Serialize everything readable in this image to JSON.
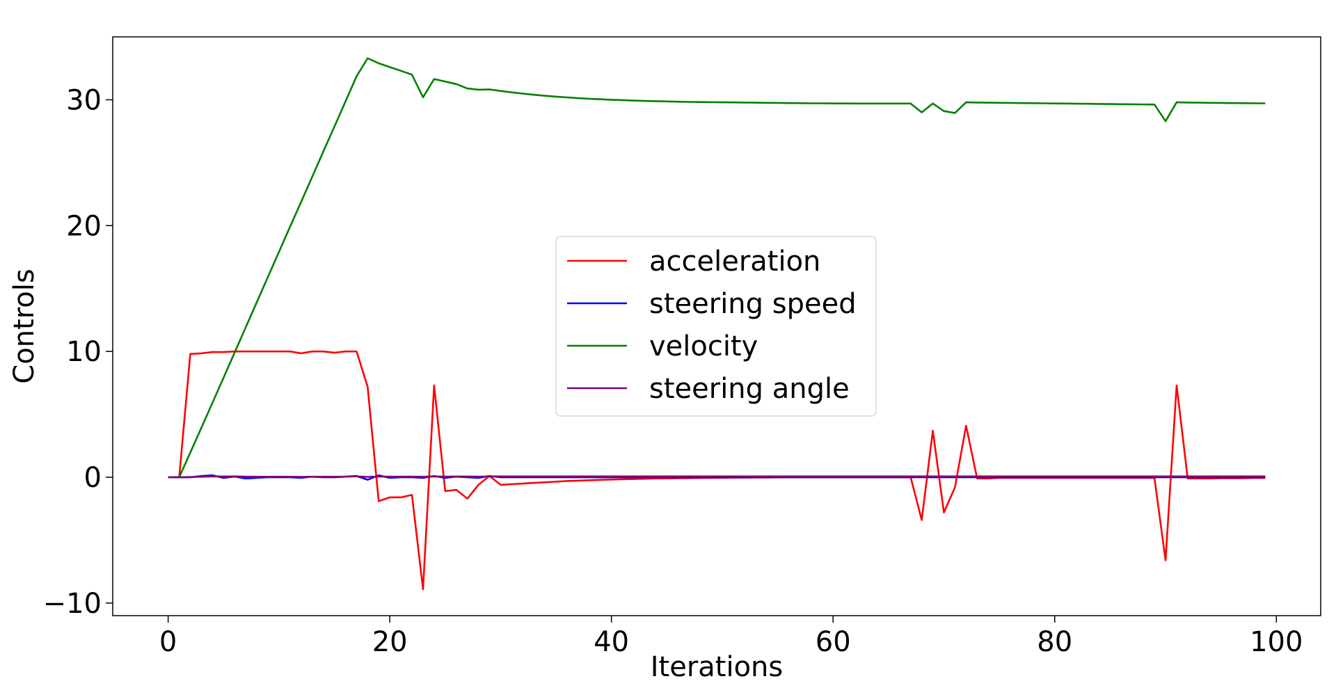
{
  "chart_data": {
    "type": "line",
    "xlabel": "Iterations",
    "ylabel": "Controls",
    "xlim": [
      -5,
      104
    ],
    "ylim": [
      -11,
      35
    ],
    "xticks": [
      0,
      20,
      40,
      60,
      80,
      100
    ],
    "yticks": [
      -10,
      0,
      10,
      20,
      30
    ],
    "xtick_labels": [
      "0",
      "20",
      "40",
      "60",
      "80",
      "100"
    ],
    "ytick_labels": [
      "−10",
      "0",
      "10",
      "20",
      "30"
    ],
    "grid": false,
    "legend_position": "center",
    "x": [
      0,
      1,
      2,
      3,
      4,
      5,
      6,
      7,
      8,
      9,
      10,
      11,
      12,
      13,
      14,
      15,
      16,
      17,
      18,
      19,
      20,
      21,
      22,
      23,
      24,
      25,
      26,
      27,
      28,
      29,
      30,
      31,
      32,
      33,
      34,
      35,
      36,
      37,
      38,
      39,
      40,
      41,
      42,
      43,
      44,
      45,
      46,
      47,
      48,
      49,
      50,
      51,
      52,
      53,
      54,
      55,
      56,
      57,
      58,
      59,
      60,
      61,
      62,
      63,
      64,
      65,
      66,
      67,
      68,
      69,
      70,
      71,
      72,
      73,
      74,
      75,
      76,
      77,
      78,
      79,
      80,
      81,
      82,
      83,
      84,
      85,
      86,
      87,
      88,
      89,
      90,
      91,
      92,
      93,
      94,
      95,
      96,
      97,
      98,
      99
    ],
    "series": [
      {
        "name": "acceleration",
        "color": "#ff0000",
        "values": [
          0,
          0,
          9.8,
          9.85,
          9.95,
          9.95,
          10,
          10,
          10,
          10,
          10,
          10,
          9.85,
          10,
          10,
          9.9,
          10,
          10,
          7.2,
          -1.9,
          -1.6,
          -1.6,
          -1.4,
          -8.9,
          7.3,
          -1.1,
          -1.0,
          -1.7,
          -0.6,
          0.1,
          -0.6,
          -0.55,
          -0.5,
          -0.45,
          -0.4,
          -0.35,
          -0.3,
          -0.27,
          -0.24,
          -0.21,
          -0.18,
          -0.16,
          -0.14,
          -0.12,
          -0.1,
          -0.09,
          -0.08,
          -0.07,
          -0.06,
          -0.05,
          -0.04,
          -0.03,
          -0.03,
          -0.02,
          -0.02,
          -0.01,
          -0.01,
          -0.01,
          0,
          0,
          0,
          0,
          0,
          0,
          0,
          0,
          0,
          0,
          -3.4,
          3.7,
          -2.8,
          -0.8,
          4.1,
          -0.1,
          -0.1,
          -0.05,
          -0.05,
          -0.05,
          -0.05,
          -0.05,
          -0.05,
          -0.05,
          -0.05,
          -0.05,
          -0.05,
          -0.05,
          -0.05,
          -0.05,
          -0.05,
          -0.05,
          -6.6,
          7.3,
          -0.1,
          -0.1,
          -0.1,
          -0.08,
          -0.08,
          -0.08,
          -0.06,
          -0.06
        ]
      },
      {
        "name": "steering speed",
        "color": "#0000ff",
        "values": [
          0,
          0,
          0,
          0.1,
          0.15,
          -0.05,
          0.05,
          -0.1,
          -0.05,
          0,
          0,
          0,
          -0.05,
          0.05,
          0,
          0,
          0.05,
          0.1,
          -0.2,
          0.15,
          -0.05,
          0,
          0,
          -0.05,
          0.1,
          -0.05,
          0.05,
          0,
          -0.05,
          0.1,
          0,
          0,
          0,
          0,
          0,
          0,
          0,
          0,
          0,
          0,
          0,
          0,
          0,
          0,
          0,
          0,
          0,
          0,
          0,
          0,
          0,
          0,
          0,
          0,
          0,
          0,
          0,
          0,
          0,
          0,
          0,
          0,
          0,
          0,
          0,
          0,
          0,
          0,
          0,
          0,
          0,
          0,
          0,
          0,
          0,
          0,
          0,
          0,
          0,
          0,
          0,
          0,
          0,
          0,
          0,
          0,
          0,
          0,
          0,
          0,
          0,
          0,
          0,
          0,
          0,
          0,
          0,
          0,
          0,
          0
        ]
      },
      {
        "name": "velocity",
        "color": "#008000",
        "values": [
          0,
          0,
          1.96,
          3.93,
          5.92,
          7.91,
          9.91,
          11.91,
          13.91,
          15.91,
          17.91,
          19.91,
          21.88,
          23.88,
          25.88,
          27.86,
          29.86,
          31.86,
          33.3,
          32.9,
          32.6,
          32.3,
          32.0,
          30.2,
          31.65,
          31.45,
          31.25,
          30.9,
          30.8,
          30.82,
          30.7,
          30.59,
          30.49,
          30.4,
          30.32,
          30.25,
          30.19,
          30.13,
          30.08,
          30.04,
          30.0,
          29.97,
          29.94,
          29.91,
          29.89,
          29.87,
          29.85,
          29.83,
          29.82,
          29.81,
          29.8,
          29.79,
          29.78,
          29.77,
          29.76,
          29.75,
          29.74,
          29.73,
          29.72,
          29.72,
          29.71,
          29.71,
          29.7,
          29.7,
          29.7,
          29.7,
          29.7,
          29.7,
          29.0,
          29.7,
          29.1,
          28.95,
          29.8,
          29.78,
          29.77,
          29.76,
          29.75,
          29.74,
          29.73,
          29.72,
          29.71,
          29.7,
          29.69,
          29.68,
          29.67,
          29.66,
          29.65,
          29.64,
          29.63,
          29.62,
          28.3,
          29.8,
          29.78,
          29.77,
          29.76,
          29.75,
          29.74,
          29.73,
          29.72,
          29.72
        ]
      },
      {
        "name": "steering angle",
        "color": "#800080",
        "values": [
          0,
          0,
          0.02,
          0.04,
          0.07,
          0.06,
          0.07,
          0.05,
          0.04,
          0.04,
          0.04,
          0.04,
          0.03,
          0.04,
          0.04,
          0.04,
          0.05,
          0.07,
          0.03,
          0.06,
          0.05,
          0.05,
          0.05,
          0.04,
          0.06,
          0.05,
          0.06,
          0.06,
          0.05,
          0.07,
          0.07,
          0.07,
          0.07,
          0.07,
          0.07,
          0.07,
          0.07,
          0.07,
          0.07,
          0.07,
          0.07,
          0.07,
          0.07,
          0.07,
          0.07,
          0.07,
          0.07,
          0.07,
          0.07,
          0.07,
          0.07,
          0.07,
          0.07,
          0.07,
          0.07,
          0.07,
          0.07,
          0.07,
          0.07,
          0.07,
          0.07,
          0.07,
          0.07,
          0.07,
          0.07,
          0.07,
          0.07,
          0.07,
          0.07,
          0.07,
          0.07,
          0.07,
          0.07,
          0.07,
          0.07,
          0.07,
          0.07,
          0.07,
          0.07,
          0.07,
          0.07,
          0.07,
          0.07,
          0.07,
          0.07,
          0.07,
          0.07,
          0.07,
          0.07,
          0.07,
          0.07,
          0.07,
          0.07,
          0.07,
          0.07,
          0.07,
          0.07,
          0.07,
          0.07,
          0.07
        ]
      }
    ]
  }
}
